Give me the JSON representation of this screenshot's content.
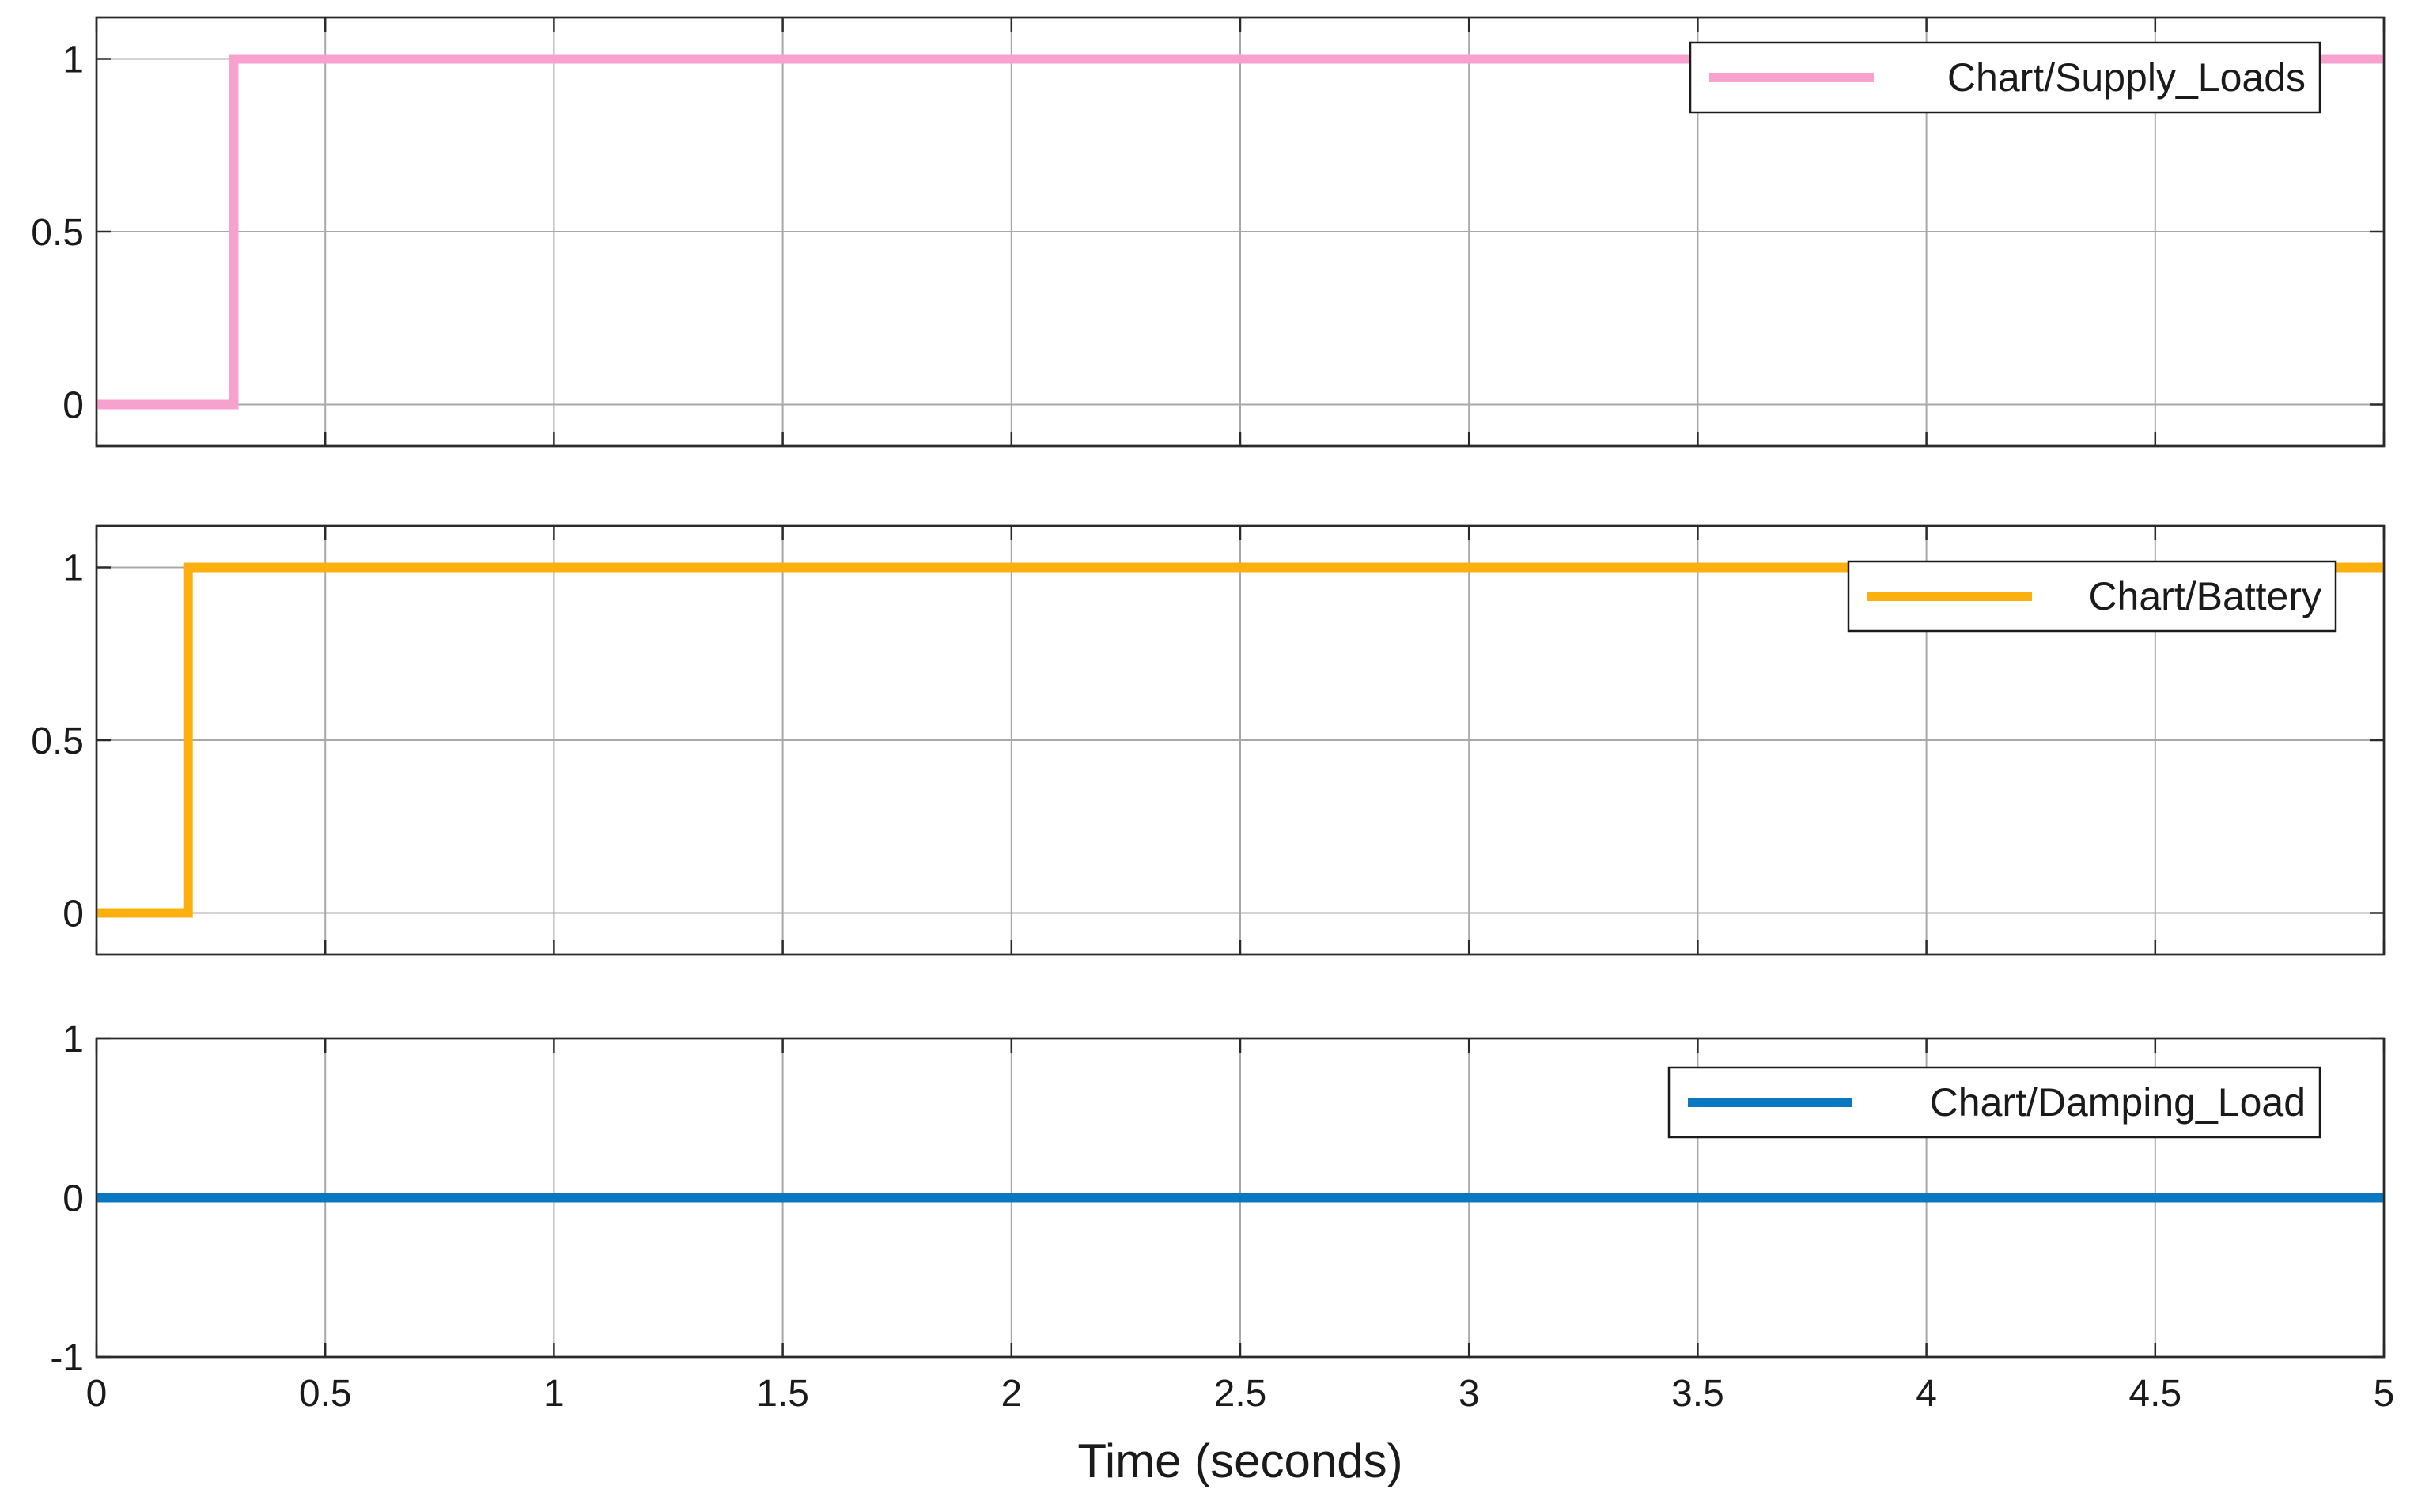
{
  "chart_data": {
    "type": "line",
    "xlabel": "Time (seconds)",
    "xlim": [
      0,
      5
    ],
    "xticks": [
      0,
      0.5,
      1,
      1.5,
      2,
      2.5,
      3,
      3.5,
      4,
      4.5,
      5
    ],
    "xtick_labels": [
      "0",
      "0.5",
      "1",
      "1.5",
      "2",
      "2.5",
      "3",
      "3.5",
      "4",
      "4.5",
      "5"
    ],
    "grid": true,
    "legend_position": "top-right",
    "subplots": [
      {
        "ylim": [
          -0.12,
          1.12
        ],
        "yticks": [
          0,
          0.5,
          1
        ],
        "ytick_labels": [
          "0",
          "0.5",
          "1"
        ],
        "series": [
          {
            "name": "Chart/Supply_Loads",
            "color": "#f7a1cf",
            "x": [
              0,
              0.3,
              0.3,
              5
            ],
            "y": [
              0,
              0,
              1,
              1
            ]
          }
        ]
      },
      {
        "ylim": [
          -0.12,
          1.12
        ],
        "yticks": [
          0,
          0.5,
          1
        ],
        "ytick_labels": [
          "0",
          "0.5",
          "1"
        ],
        "series": [
          {
            "name": "Chart/Battery",
            "color": "#fbb00f",
            "x": [
              0,
              0.2,
              0.2,
              5
            ],
            "y": [
              0,
              0,
              1,
              1
            ]
          }
        ]
      },
      {
        "ylim": [
          -1,
          1
        ],
        "yticks": [
          -1,
          0,
          1
        ],
        "ytick_labels": [
          "-1",
          "0",
          "1"
        ],
        "series": [
          {
            "name": "Chart/Damping_Load",
            "color": "#0a78c0",
            "x": [
              0,
              5
            ],
            "y": [
              0,
              0
            ]
          }
        ]
      }
    ]
  }
}
